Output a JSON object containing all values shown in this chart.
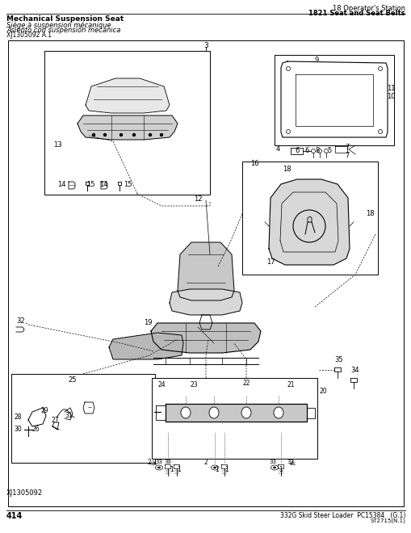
{
  "page_number": "414",
  "top_right_line1": "18 Operator's Station",
  "top_right_line2": "1821 Seat and Seat Belts",
  "top_left_bold": "Mechanical Suspension Seat",
  "top_left_line2": "Siège à suspension mécanique",
  "top_left_line3": "Asiento con suspensión mecánica",
  "top_left_line4": "XJ1305092 A.1",
  "bottom_right": "332G Skid Steer Loader  PC15384   (G.1)",
  "bottom_right2": "ST2715(N.1)",
  "bottom_left_label": "XJ1305092",
  "bg_color": "#ffffff"
}
